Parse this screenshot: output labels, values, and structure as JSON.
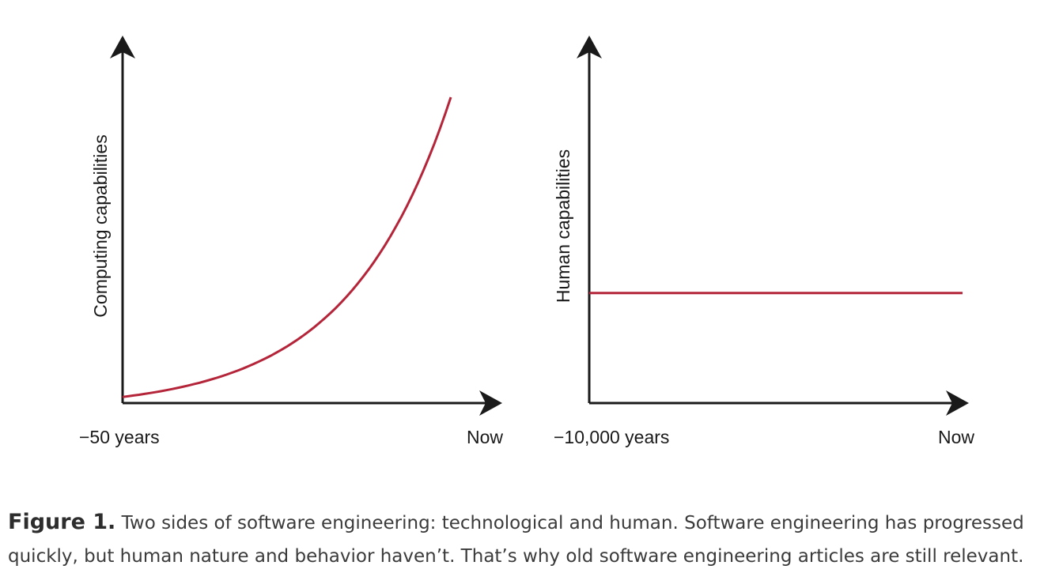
{
  "chart_data": [
    {
      "type": "line",
      "ylabel": "Computing capabilities",
      "x_tick_labels": [
        "−50 years",
        "Now"
      ],
      "grid": false,
      "legend": "none",
      "series": [
        {
          "shape": "exponential",
          "start_level": 0.02,
          "end_level": 1.0,
          "color": "#b5253a"
        }
      ]
    },
    {
      "type": "line",
      "ylabel": "Human capabilities",
      "x_tick_labels": [
        "−10,000 years",
        "Now"
      ],
      "grid": false,
      "legend": "none",
      "series": [
        {
          "shape": "constant",
          "level": 0.36,
          "color": "#b5253a"
        }
      ]
    }
  ],
  "caption": {
    "label": "Figure 1.",
    "text": "Two sides of software engineering: technological and human. Software engineering has progressed quickly, but human nature and behavior haven’t. That’s why old software engineering articles are still relevant."
  },
  "colors": {
    "axis": "#1a1a1a",
    "curve": "#b5253a"
  }
}
